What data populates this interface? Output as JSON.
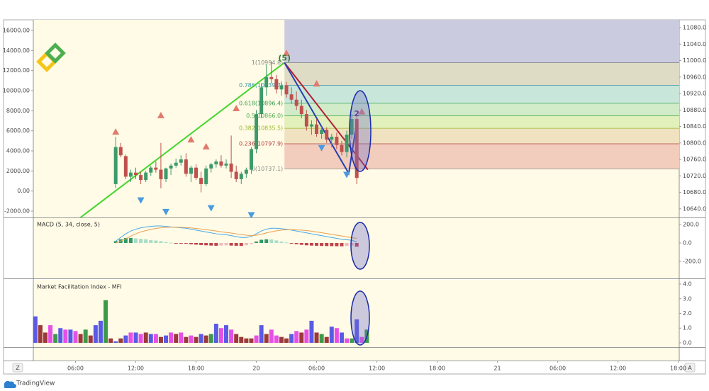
{
  "ui": {
    "brand": "TradingView",
    "buttons": [
      "Z",
      "A"
    ]
  },
  "chart_data": [
    {
      "type": "candlestick",
      "xlim": [
        1.8,
        66.1
      ],
      "xticks": [
        {
          "value": 6,
          "label": "06:00"
        },
        {
          "value": 12,
          "label": "12:00"
        },
        {
          "value": 18,
          "label": "18:00"
        },
        {
          "value": 24,
          "label": "20"
        },
        {
          "value": 30,
          "label": "06:00"
        },
        {
          "value": 36,
          "label": "12:00"
        },
        {
          "value": 42,
          "label": "18:00"
        },
        {
          "value": 48,
          "label": "21"
        },
        {
          "value": 54,
          "label": "06:00"
        },
        {
          "value": 60,
          "label": "12:00"
        },
        {
          "value": 66,
          "label": "18:00"
        }
      ],
      "ylim": [
        -2635,
        17060
      ],
      "yticks": [
        {
          "value": 16000,
          "label": "16000.00"
        },
        {
          "value": 14000,
          "label": "14000.00"
        },
        {
          "value": 12000,
          "label": "12000.00"
        },
        {
          "value": 10000,
          "label": "10000.00"
        },
        {
          "value": 8000,
          "label": "8000.00"
        },
        {
          "value": 6000,
          "label": "6000.00"
        },
        {
          "value": 4000,
          "label": "4000.00"
        },
        {
          "value": 2000,
          "label": "2000.00"
        },
        {
          "value": 0,
          "label": "0.00"
        },
        {
          "value": -2000,
          "label": "-2000.00"
        }
      ],
      "y2lim": [
        10619,
        11099
      ],
      "y2ticks": [
        {
          "value": 11080,
          "label": "11080.0"
        },
        {
          "value": 11040,
          "label": "11040.0"
        },
        {
          "value": 11000,
          "label": "11000.0"
        },
        {
          "value": 10960,
          "label": "10960.0"
        },
        {
          "value": 10920,
          "label": "10920.0"
        },
        {
          "value": 10880,
          "label": "10880.0"
        },
        {
          "value": 10840,
          "label": "10840.0"
        },
        {
          "value": 10800,
          "label": "10800.0"
        },
        {
          "value": 10760,
          "label": "10760.0"
        },
        {
          "value": 10720,
          "label": "10720.0"
        },
        {
          "value": 10680,
          "label": "10680.0"
        },
        {
          "value": 10640,
          "label": "10640.0"
        }
      ],
      "up_color": "#3d9a6a",
      "down_color": "#c0504d",
      "x": [
        10,
        10.5,
        11,
        11.5,
        12,
        12.5,
        13,
        13.5,
        14,
        14.5,
        15,
        15.5,
        16,
        16.5,
        17,
        17.5,
        18,
        18.5,
        19,
        19.5,
        20,
        20.5,
        21,
        21.5,
        22,
        22.5,
        23,
        23.5,
        24,
        24.5,
        25,
        25.5,
        26,
        26.5,
        27,
        27.5,
        28,
        28.5,
        29,
        29.5,
        30,
        30.5,
        31,
        31.5,
        32,
        32.5,
        33,
        33.5,
        34
      ],
      "open": [
        10700,
        10790,
        10768,
        10718,
        10728,
        10722,
        10710,
        10728,
        10740,
        10735,
        10712,
        10738,
        10745,
        10752,
        10760,
        10725,
        10740,
        10715,
        10700,
        10738,
        10748,
        10755,
        10745,
        10750,
        10730,
        10712,
        10725,
        10735,
        10785,
        10870,
        10935,
        10960,
        10955,
        10930,
        10940,
        10918,
        10905,
        10890,
        10870,
        10840,
        10845,
        10822,
        10832,
        10808,
        10815,
        10795,
        10778,
        10820,
        10858
      ],
      "high": [
        10815,
        10800,
        10772,
        10735,
        10740,
        10730,
        10732,
        10745,
        10755,
        10800,
        10740,
        10750,
        10762,
        10770,
        10775,
        10745,
        10748,
        10730,
        10745,
        10752,
        10760,
        10770,
        10760,
        10818,
        10745,
        10730,
        10740,
        10790,
        10880,
        10945,
        10990,
        10998,
        10965,
        10950,
        10948,
        10935,
        10925,
        10905,
        10880,
        10855,
        10858,
        10840,
        10838,
        10822,
        10825,
        10805,
        10830,
        10870,
        10865
      ],
      "low": [
        10690,
        10765,
        10712,
        10705,
        10712,
        10700,
        10705,
        10720,
        10728,
        10690,
        10705,
        10722,
        10740,
        10745,
        10718,
        10705,
        10710,
        10680,
        10695,
        10728,
        10740,
        10740,
        10738,
        10715,
        10705,
        10700,
        10715,
        10725,
        10775,
        10860,
        10915,
        10945,
        10920,
        10915,
        10910,
        10895,
        10880,
        10860,
        10830,
        10820,
        10815,
        10810,
        10800,
        10790,
        10785,
        10770,
        10765,
        10810,
        10700
      ],
      "close": [
        10790,
        10770,
        10718,
        10728,
        10722,
        10710,
        10728,
        10740,
        10735,
        10712,
        10738,
        10745,
        10752,
        10760,
        10725,
        10740,
        10715,
        10700,
        10738,
        10748,
        10755,
        10745,
        10750,
        10730,
        10712,
        10725,
        10735,
        10785,
        10870,
        10935,
        10960,
        10955,
        10930,
        10940,
        10918,
        10905,
        10890,
        10870,
        10840,
        10845,
        10822,
        10832,
        10808,
        10815,
        10795,
        10778,
        10820,
        10858,
        10715
      ],
      "fib": {
        "x_start": 26.8,
        "top_band": "#cbcbe0",
        "levels": [
          {
            "value": 10994.8,
            "label": "1(10994.8)",
            "color": "#888888",
            "band": "#dedcc4"
          },
          {
            "value": 10939.7,
            "label": "0.786(10939.7)",
            "color": "#3a9ab0",
            "band": "#c9e6da"
          },
          {
            "value": 10896.4,
            "label": "0.618(10896.4)",
            "color": "#3aa050",
            "band": "#d2ecca"
          },
          {
            "value": 10866.0,
            "label": "0.5(10866.0)",
            "color": "#4caf50",
            "band": "#e2f0bc"
          },
          {
            "value": 10835.5,
            "label": "0.382(10835.5)",
            "color": "#9ab82c",
            "band": "#f0e2c0"
          },
          {
            "value": 10797.9,
            "label": "0.236(10797.9)",
            "color": "#b04040",
            "band": "#f2cdbd"
          },
          {
            "value": 10737.1,
            "label": "0(10737.1)",
            "color": "#888888"
          }
        ]
      },
      "trend_lines": [
        {
          "color": "#44d62c",
          "x": [
            6.5,
            26.8
          ],
          "y": [
            10619,
            10995
          ]
        },
        {
          "color": "#b0203a",
          "x": [
            26.8,
            35.1
          ],
          "y": [
            10995,
            10735
          ]
        },
        {
          "color": "#2a3fb0",
          "x": [
            26.8,
            33.2,
            34.0
          ],
          "y": [
            10995,
            10726,
            10850
          ]
        }
      ],
      "fractals_up": {
        "color": "#e07a6e",
        "x": [
          10,
          14.5,
          17.5,
          19,
          22,
          27,
          30,
          34.5
        ],
        "y": [
          10827,
          10867,
          10808,
          10791,
          10884,
          11018,
          10944,
          10876
        ]
      },
      "fractals_down": {
        "color": "#4a9ae0",
        "x": [
          12.5,
          15,
          19.5,
          23.5,
          30.5,
          33
        ],
        "y": [
          10661,
          10633,
          10642,
          10625,
          10788,
          10723
        ]
      },
      "annotations": [
        {
          "text": "(5)",
          "x": 26.8,
          "y": 11005,
          "color": "#2e7d32"
        },
        {
          "text": "2",
          "x": 34,
          "y": 10870,
          "color": "#5b2a8a"
        }
      ]
    },
    {
      "type": "macd",
      "title": "MACD (5, 34, close, 5)",
      "ylim": [
        -385,
        270
      ],
      "yticks": [
        {
          "value": 200,
          "label": "200.0"
        },
        {
          "value": 0,
          "label": "0.0"
        },
        {
          "value": -200,
          "label": "-200.0"
        }
      ],
      "macd_color": "#4aa8e8",
      "signal_color": "#e8a050",
      "hist_colors": {
        "up_strong": "#2e9a6a",
        "up_weak": "#a8dcc8",
        "down_strong": "#c0404a",
        "down_weak": "#f0b8bc"
      },
      "x": [
        10,
        10.5,
        11,
        11.5,
        12,
        12.5,
        13,
        13.5,
        14,
        14.5,
        15,
        15.5,
        16,
        16.5,
        17,
        17.5,
        18,
        18.5,
        19,
        19.5,
        20,
        20.5,
        21,
        21.5,
        22,
        22.5,
        23,
        23.5,
        24,
        24.5,
        25,
        25.5,
        26,
        26.5,
        27,
        27.5,
        28,
        28.5,
        29,
        29.5,
        30,
        30.5,
        31,
        31.5,
        32,
        32.5,
        33,
        33.5,
        34
      ],
      "histogram": [
        20,
        40,
        55,
        55,
        50,
        45,
        40,
        32,
        27,
        20,
        10,
        3,
        -2,
        -5,
        -8,
        -14,
        -18,
        -22,
        -25,
        -28,
        -30,
        -27,
        -25,
        -28,
        -30,
        -32,
        -25,
        -10,
        16,
        35,
        40,
        38,
        28,
        15,
        6,
        -5,
        -13,
        -20,
        -25,
        -28,
        -30,
        -32,
        -33,
        -34,
        -35,
        -36,
        -32,
        -28,
        -40
      ],
      "macd": [
        20,
        60,
        100,
        130,
        150,
        165,
        175,
        180,
        185,
        185,
        180,
        175,
        170,
        165,
        160,
        150,
        140,
        130,
        120,
        110,
        100,
        95,
        90,
        80,
        70,
        60,
        60,
        70,
        100,
        130,
        150,
        160,
        160,
        155,
        150,
        140,
        130,
        120,
        110,
        100,
        90,
        80,
        70,
        60,
        50,
        40,
        35,
        30,
        10
      ],
      "signal": [
        0,
        20,
        45,
        75,
        100,
        120,
        135,
        148,
        158,
        165,
        170,
        172,
        172,
        170,
        168,
        164,
        158,
        152,
        145,
        138,
        130,
        122,
        115,
        108,
        100,
        92,
        85,
        80,
        84,
        95,
        110,
        122,
        132,
        140,
        144,
        145,
        143,
        140,
        135,
        128,
        120,
        112,
        103,
        94,
        85,
        76,
        67,
        58,
        50
      ]
    },
    {
      "type": "bar",
      "title": "Market Facilitation Index - MFI",
      "ylim": [
        -0.29,
        4.29
      ],
      "yticks": [
        {
          "value": 4,
          "label": "4.0"
        },
        {
          "value": 3,
          "label": "3.0"
        },
        {
          "value": 2,
          "label": "2.0"
        },
        {
          "value": 1,
          "label": "1.0"
        },
        {
          "value": 0,
          "label": "0.0"
        }
      ],
      "x": [
        2,
        2.5,
        3,
        3.5,
        4,
        4.5,
        5,
        5.5,
        6,
        6.5,
        7,
        7.5,
        8,
        8.5,
        9,
        9.5,
        10,
        10.5,
        11,
        11.5,
        12,
        12.5,
        13,
        13.5,
        14,
        14.5,
        15,
        15.5,
        16,
        16.5,
        17,
        17.5,
        18,
        18.5,
        19,
        19.5,
        20,
        20.5,
        21,
        21.5,
        22,
        22.5,
        23,
        23.5,
        24,
        24.5,
        25,
        25.5,
        26,
        26.5,
        27,
        27.5,
        28,
        28.5,
        29,
        29.5,
        30,
        30.5,
        31,
        31.5,
        32,
        32.5,
        33,
        33.5,
        34,
        34.5,
        35
      ],
      "values": [
        1.8,
        1.2,
        0.7,
        1.2,
        0.6,
        1.0,
        0.9,
        0.9,
        0.8,
        0.6,
        0.9,
        0.5,
        1.2,
        1.5,
        2.9,
        0.3,
        0.1,
        0.3,
        0.5,
        0.7,
        0.7,
        0.6,
        0.7,
        0.6,
        0.6,
        0.4,
        0.5,
        0.7,
        0.6,
        0.7,
        0.4,
        0.5,
        0.4,
        0.6,
        0.5,
        0.6,
        1.3,
        1.0,
        1.2,
        0.9,
        0.6,
        0.4,
        0.3,
        0.3,
        0.5,
        1.2,
        0.6,
        0.9,
        0.5,
        0.4,
        0.3,
        0.6,
        0.8,
        0.7,
        0.9,
        1.5,
        0.7,
        0.6,
        0.4,
        1.1,
        1.0,
        0.7,
        0.3,
        0.3,
        1.6,
        0.4,
        0.9
      ],
      "bar_colors": [
        "#5a5ae6",
        "#9a3a3a",
        "#9a3a3a",
        "#e650e6",
        "#3d9a4a",
        "#5a5ae6",
        "#e650e6",
        "#5a5ae6",
        "#e650e6",
        "#9a3a3a",
        "#3d9a4a",
        "#9a3a3a",
        "#5a5ae6",
        "#5a5ae6",
        "#3d9a4a",
        "#9a3a3a",
        "#5a5ae6",
        "#9a3a3a",
        "#5a5ae6",
        "#e650e6",
        "#5a5ae6",
        "#e650e6",
        "#9a3a3a",
        "#5a5ae6",
        "#e650e6",
        "#9a3a3a",
        "#5a5ae6",
        "#e650e6",
        "#9a3a3a",
        "#e650e6",
        "#9a3a3a",
        "#e650e6",
        "#9a3a3a",
        "#5a5ae6",
        "#9a3a3a",
        "#3d9a4a",
        "#5a5ae6",
        "#e650e6",
        "#5a5ae6",
        "#e650e6",
        "#9a3a3a",
        "#9a3a3a",
        "#9a3a3a",
        "#9a3a3a",
        "#e650e6",
        "#5a5ae6",
        "#9a3a3a",
        "#e650e6",
        "#e650e6",
        "#9a3a3a",
        "#9a3a3a",
        "#5a5ae6",
        "#e650e6",
        "#9a3a3a",
        "#e650e6",
        "#5a5ae6",
        "#9a3a3a",
        "#3d9a4a",
        "#9a3a3a",
        "#5a5ae6",
        "#e650e6",
        "#5a5ae6",
        "#e650e6",
        "#3d9a4a",
        "#5a5ae6",
        "#e650e6",
        "#3d9a4a"
      ]
    }
  ]
}
